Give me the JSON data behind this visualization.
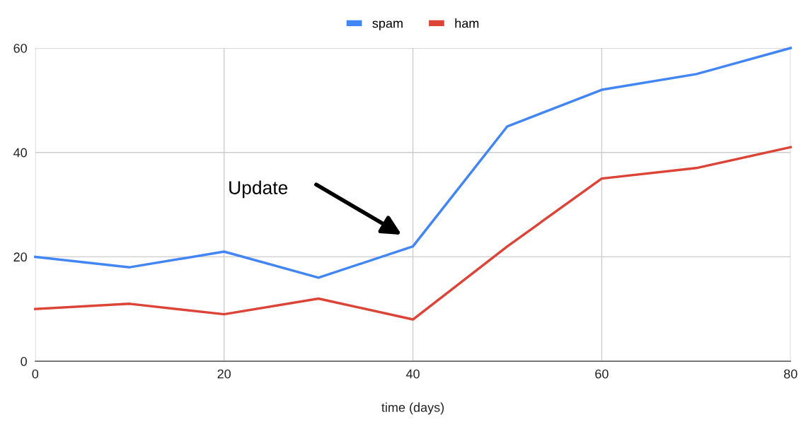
{
  "chart_data": {
    "type": "line",
    "xlabel": "time (days)",
    "x": [
      0,
      10,
      20,
      30,
      40,
      50,
      60,
      70,
      80
    ],
    "series": [
      {
        "name": "spam",
        "color": "#4285f4",
        "values": [
          20,
          18,
          21,
          16,
          22,
          45,
          52,
          55,
          60
        ]
      },
      {
        "name": "ham",
        "color": "#db4437",
        "values": [
          10,
          11,
          9,
          12,
          8,
          22,
          35,
          37,
          41
        ]
      }
    ],
    "xlim": [
      0,
      80
    ],
    "xticks": [
      0,
      20,
      40,
      60,
      80
    ],
    "ylim": [
      0,
      60
    ],
    "yticks": [
      0,
      20,
      40,
      60
    ],
    "grid": true,
    "legend": "top",
    "marker": "none",
    "line_style": "solid",
    "annotations": [
      "Update"
    ]
  }
}
